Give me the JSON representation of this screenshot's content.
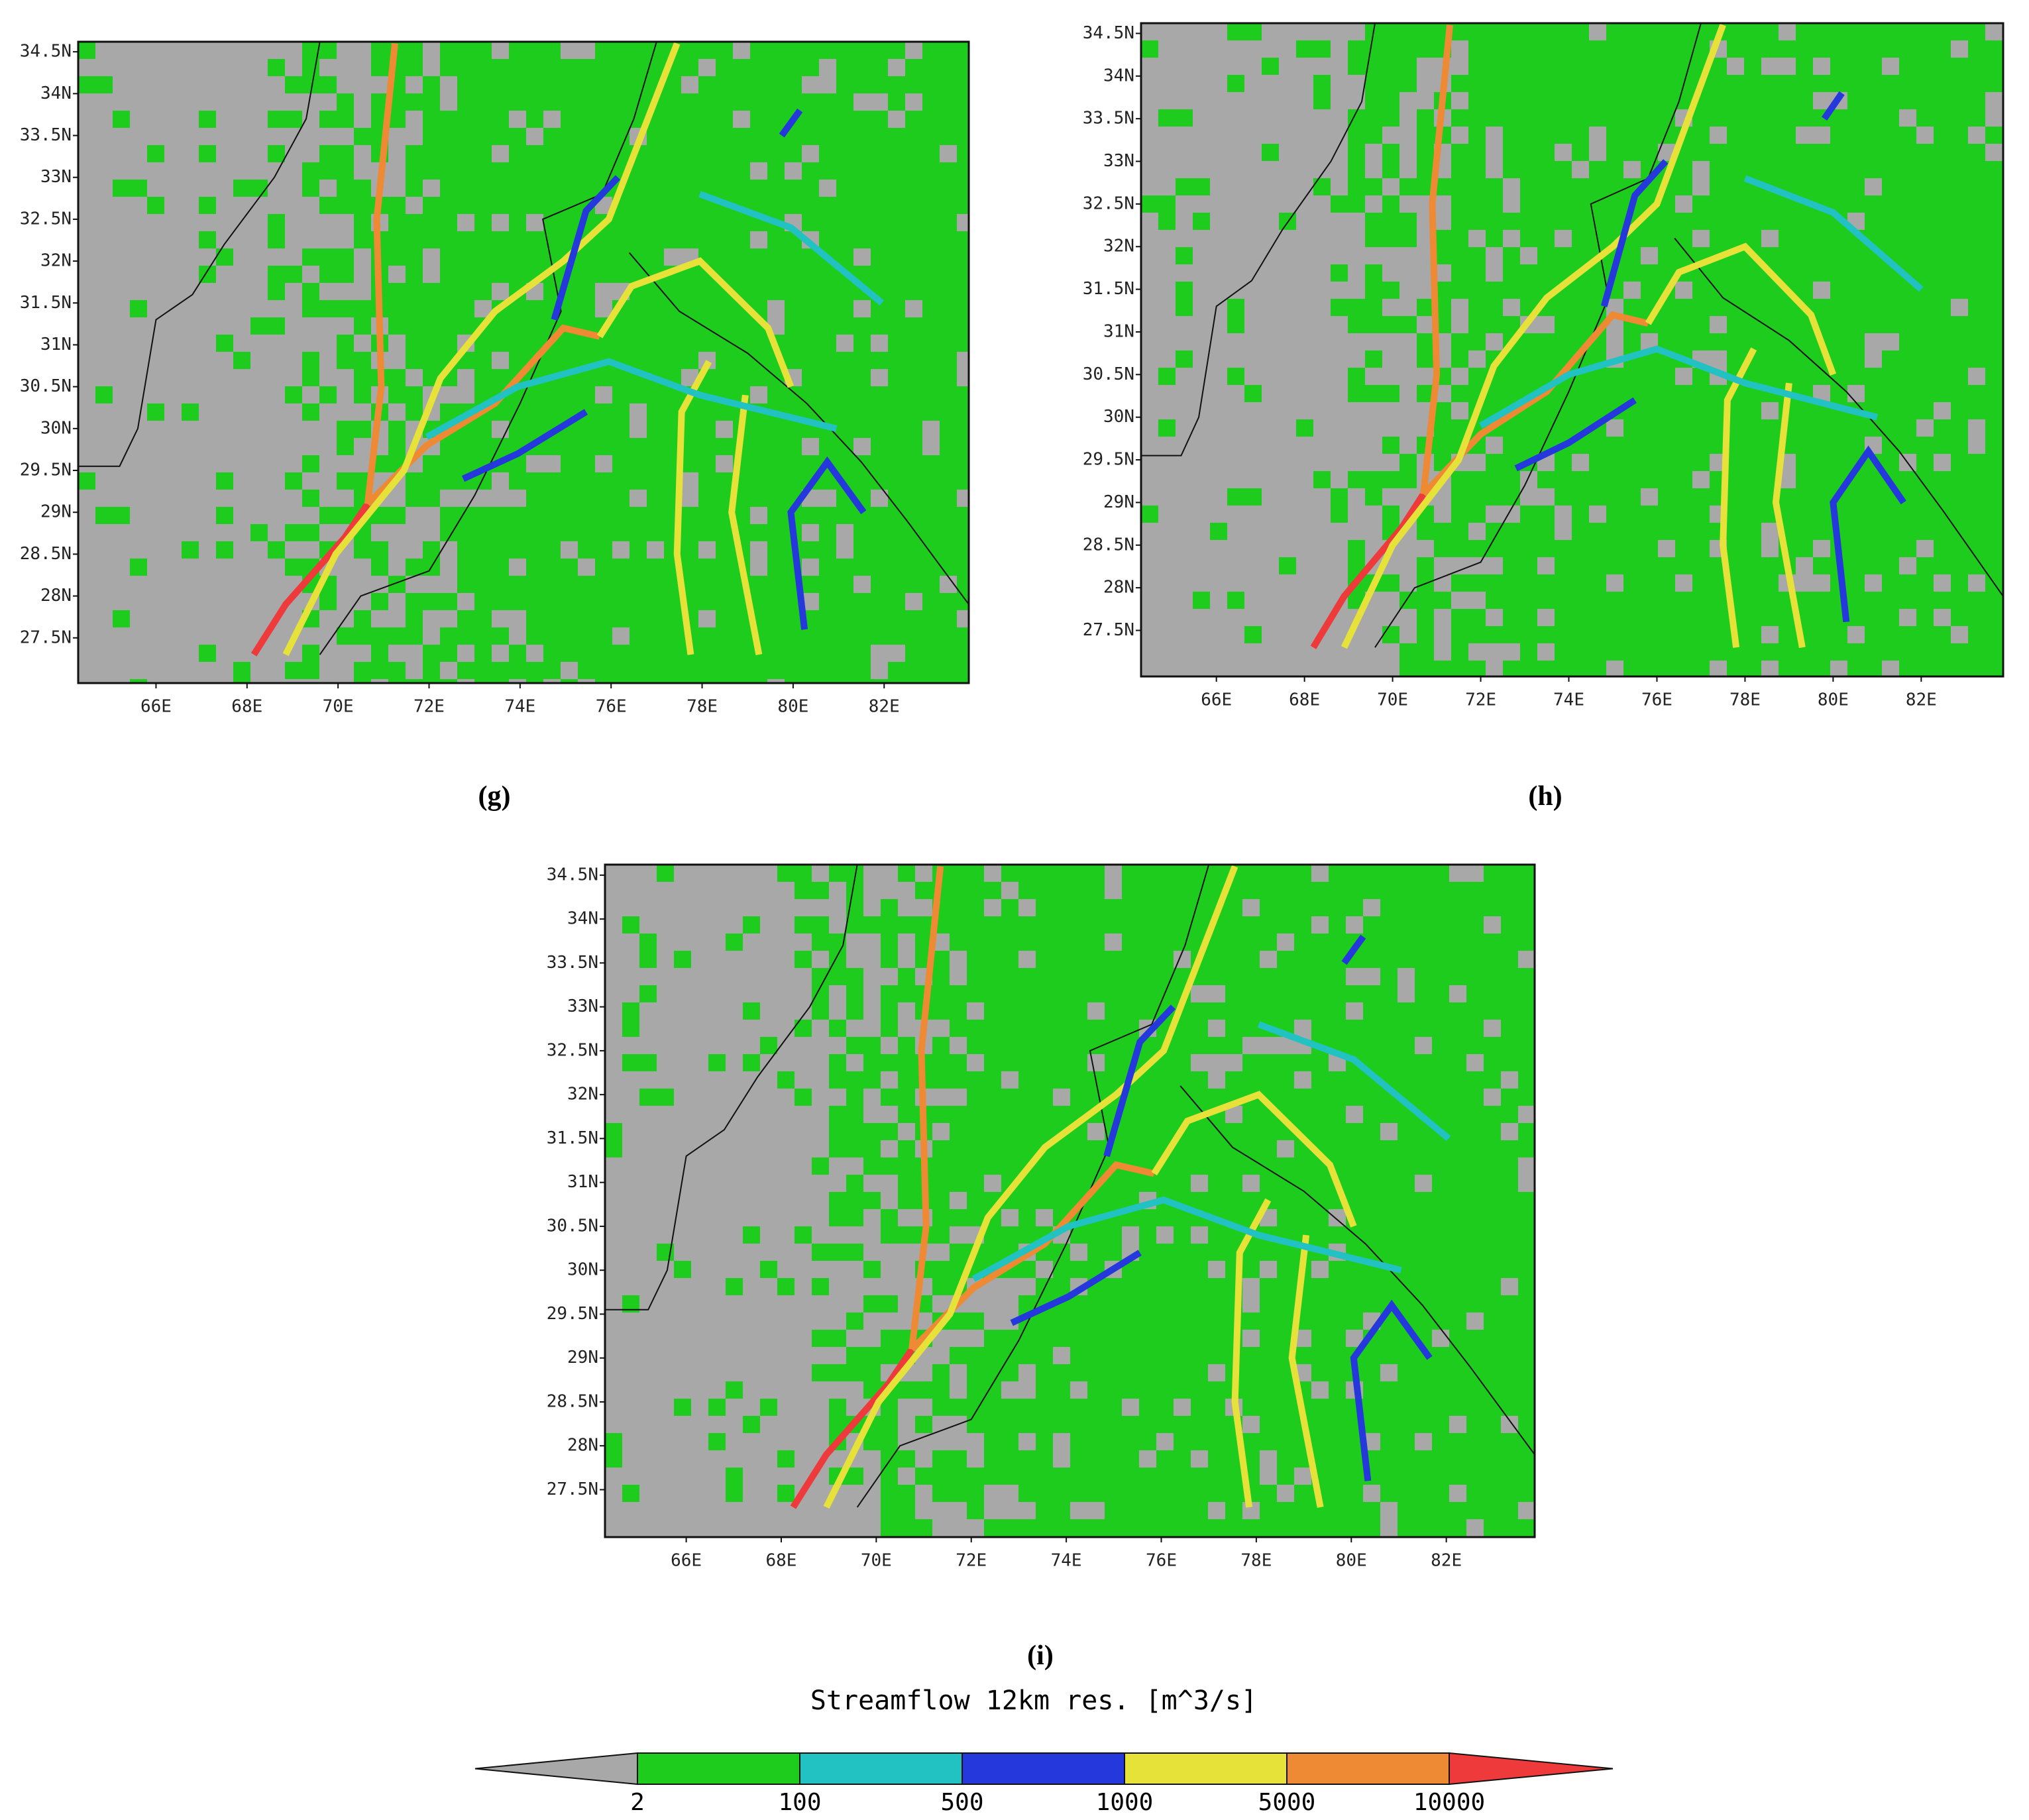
{
  "panels": [
    {
      "label": "(g)"
    },
    {
      "label": "(h)"
    },
    {
      "label": "(i)"
    }
  ],
  "axes": {
    "lonlim": [
      64.29,
      83.86
    ],
    "latlim": [
      26.96,
      34.62
    ],
    "lat_ticks": [
      {
        "value": 27.5,
        "label": "27.5N"
      },
      {
        "value": 28,
        "label": "28N"
      },
      {
        "value": 28.5,
        "label": "28.5N"
      },
      {
        "value": 29,
        "label": "29N"
      },
      {
        "value": 29.5,
        "label": "29.5N"
      },
      {
        "value": 30,
        "label": "30N"
      },
      {
        "value": 30.5,
        "label": "30.5N"
      },
      {
        "value": 31,
        "label": "31N"
      },
      {
        "value": 31.5,
        "label": "31.5N"
      },
      {
        "value": 32,
        "label": "32N"
      },
      {
        "value": 32.5,
        "label": "32.5N"
      },
      {
        "value": 33,
        "label": "33N"
      },
      {
        "value": 33.5,
        "label": "33.5N"
      },
      {
        "value": 34,
        "label": "34N"
      },
      {
        "value": 34.5,
        "label": "34.5N"
      }
    ],
    "lon_ticks": [
      {
        "value": 66,
        "label": "66E"
      },
      {
        "value": 68,
        "label": "68E"
      },
      {
        "value": 70,
        "label": "70E"
      },
      {
        "value": 72,
        "label": "72E"
      },
      {
        "value": 74,
        "label": "74E"
      },
      {
        "value": 76,
        "label": "76E"
      },
      {
        "value": 78,
        "label": "78E"
      },
      {
        "value": 80,
        "label": "80E"
      },
      {
        "value": 82,
        "label": "82E"
      }
    ]
  },
  "colorbar": {
    "title": "Streamflow 12km res. [m^3/s]",
    "labels": [
      "2",
      "100",
      "500",
      "1000",
      "5000",
      "10000"
    ],
    "colors": [
      "#a8a8a8",
      "#1ecc1e",
      "#22c2c2",
      "#2438dc",
      "#e6e23a",
      "#ee8a33",
      "#ee3a3a"
    ]
  }
}
